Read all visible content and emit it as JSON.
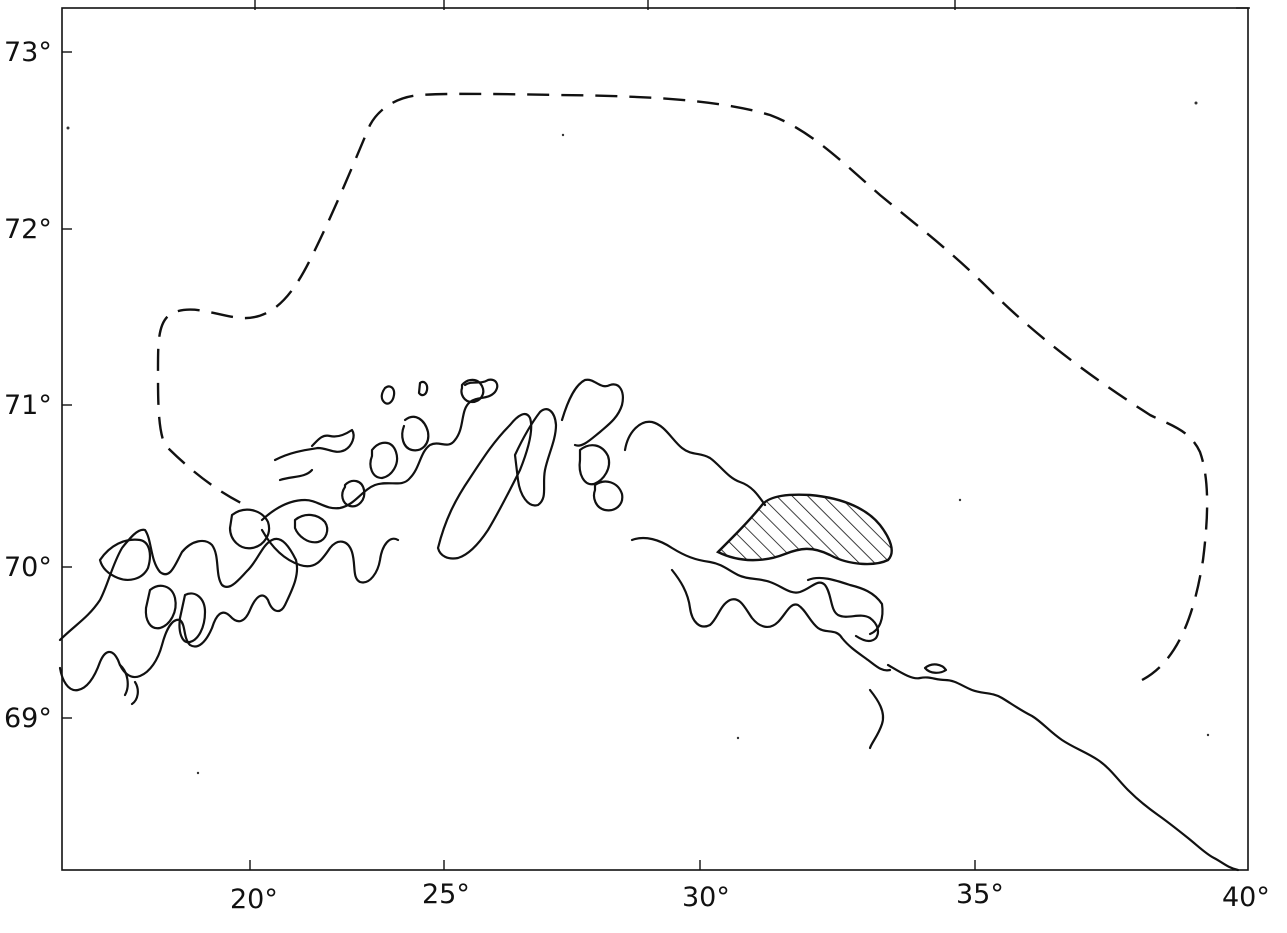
{
  "map": {
    "lat_labels": [
      "73°",
      "72°",
      "71°",
      "70°",
      "69°"
    ],
    "lon_labels": [
      "20°",
      "25°",
      "30°",
      "35°",
      "40°"
    ],
    "colors": {
      "ink": "#111111",
      "background": "#ffffff"
    }
  }
}
